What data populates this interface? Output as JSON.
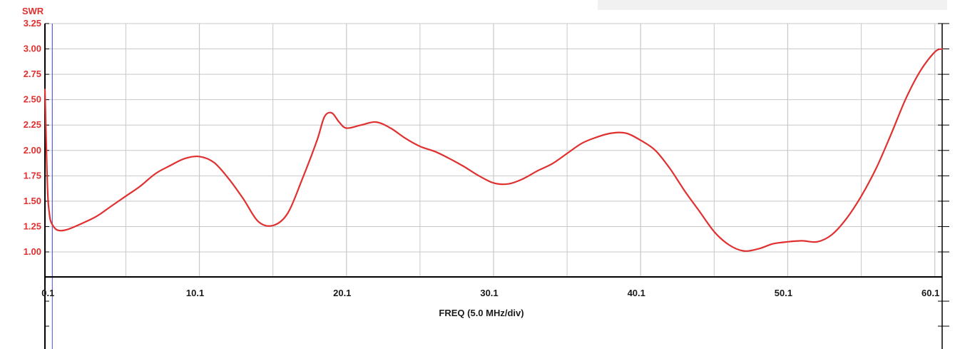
{
  "chart_data": {
    "type": "line",
    "ylabel": "SWR",
    "xlabel": "FREQ (5.0 MHz/div)",
    "xlim": [
      -0.4,
      60.6
    ],
    "ylim": [
      0.5,
      3.25
    ],
    "x_ticks": [
      0.1,
      10.1,
      20.1,
      30.1,
      40.1,
      50.1,
      60.1
    ],
    "x_tick_labels": [
      "0.1",
      "10.1",
      "20.1",
      "30.1",
      "40.1",
      "50.1",
      "60.1"
    ],
    "y_ticks": [
      1.0,
      1.25,
      1.5,
      1.75,
      2.0,
      2.25,
      2.5,
      2.75,
      3.0,
      3.25
    ],
    "y_tick_labels": [
      "1.00",
      "1.25",
      "1.50",
      "1.75",
      "2.00",
      "2.25",
      "2.50",
      "2.75",
      "3.00",
      "3.25"
    ],
    "grid": true,
    "marker_x": 0.1,
    "colors": {
      "curve": "#e03030",
      "ytick": "#e03030",
      "grid": "#c8c8c8",
      "axis": "#000000",
      "marker": "#5050c0"
    },
    "series": [
      {
        "x": [
          -0.4,
          -0.3,
          -0.2,
          -0.1,
          0.0,
          0.3,
          0.6,
          1.1,
          2.1,
          3.1,
          4.1,
          5.1,
          6.1,
          7.1,
          8.1,
          9.1,
          10.1,
          11.1,
          12.1,
          13.1,
          14.1,
          15.1,
          16.1,
          17.1,
          18.1,
          18.6,
          19.1,
          19.6,
          20.1,
          21.1,
          22.1,
          23.1,
          24.1,
          25.1,
          26.1,
          27.1,
          28.1,
          29.1,
          30.1,
          31.1,
          32.1,
          33.1,
          34.1,
          35.1,
          36.1,
          37.1,
          38.1,
          39.1,
          40.1,
          41.1,
          42.1,
          43.1,
          44.1,
          45.1,
          46.1,
          47.1,
          48.1,
          49.1,
          50.1,
          51.1,
          52.1,
          53.1,
          54.1,
          55.1,
          56.1,
          57.1,
          58.1,
          59.1,
          60.1,
          60.6
        ],
        "y": [
          2.6,
          2.0,
          1.55,
          1.38,
          1.3,
          1.23,
          1.21,
          1.22,
          1.28,
          1.35,
          1.45,
          1.55,
          1.65,
          1.77,
          1.85,
          1.92,
          1.94,
          1.88,
          1.72,
          1.52,
          1.3,
          1.26,
          1.38,
          1.72,
          2.1,
          2.33,
          2.37,
          2.28,
          2.22,
          2.25,
          2.28,
          2.22,
          2.12,
          2.04,
          1.99,
          1.92,
          1.84,
          1.75,
          1.68,
          1.67,
          1.72,
          1.8,
          1.87,
          1.97,
          2.07,
          2.13,
          2.17,
          2.17,
          2.1,
          2.0,
          1.82,
          1.6,
          1.4,
          1.2,
          1.07,
          1.01,
          1.03,
          1.08,
          1.1,
          1.11,
          1.1,
          1.17,
          1.33,
          1.55,
          1.82,
          2.15,
          2.5,
          2.78,
          2.97,
          3.0
        ]
      }
    ]
  }
}
